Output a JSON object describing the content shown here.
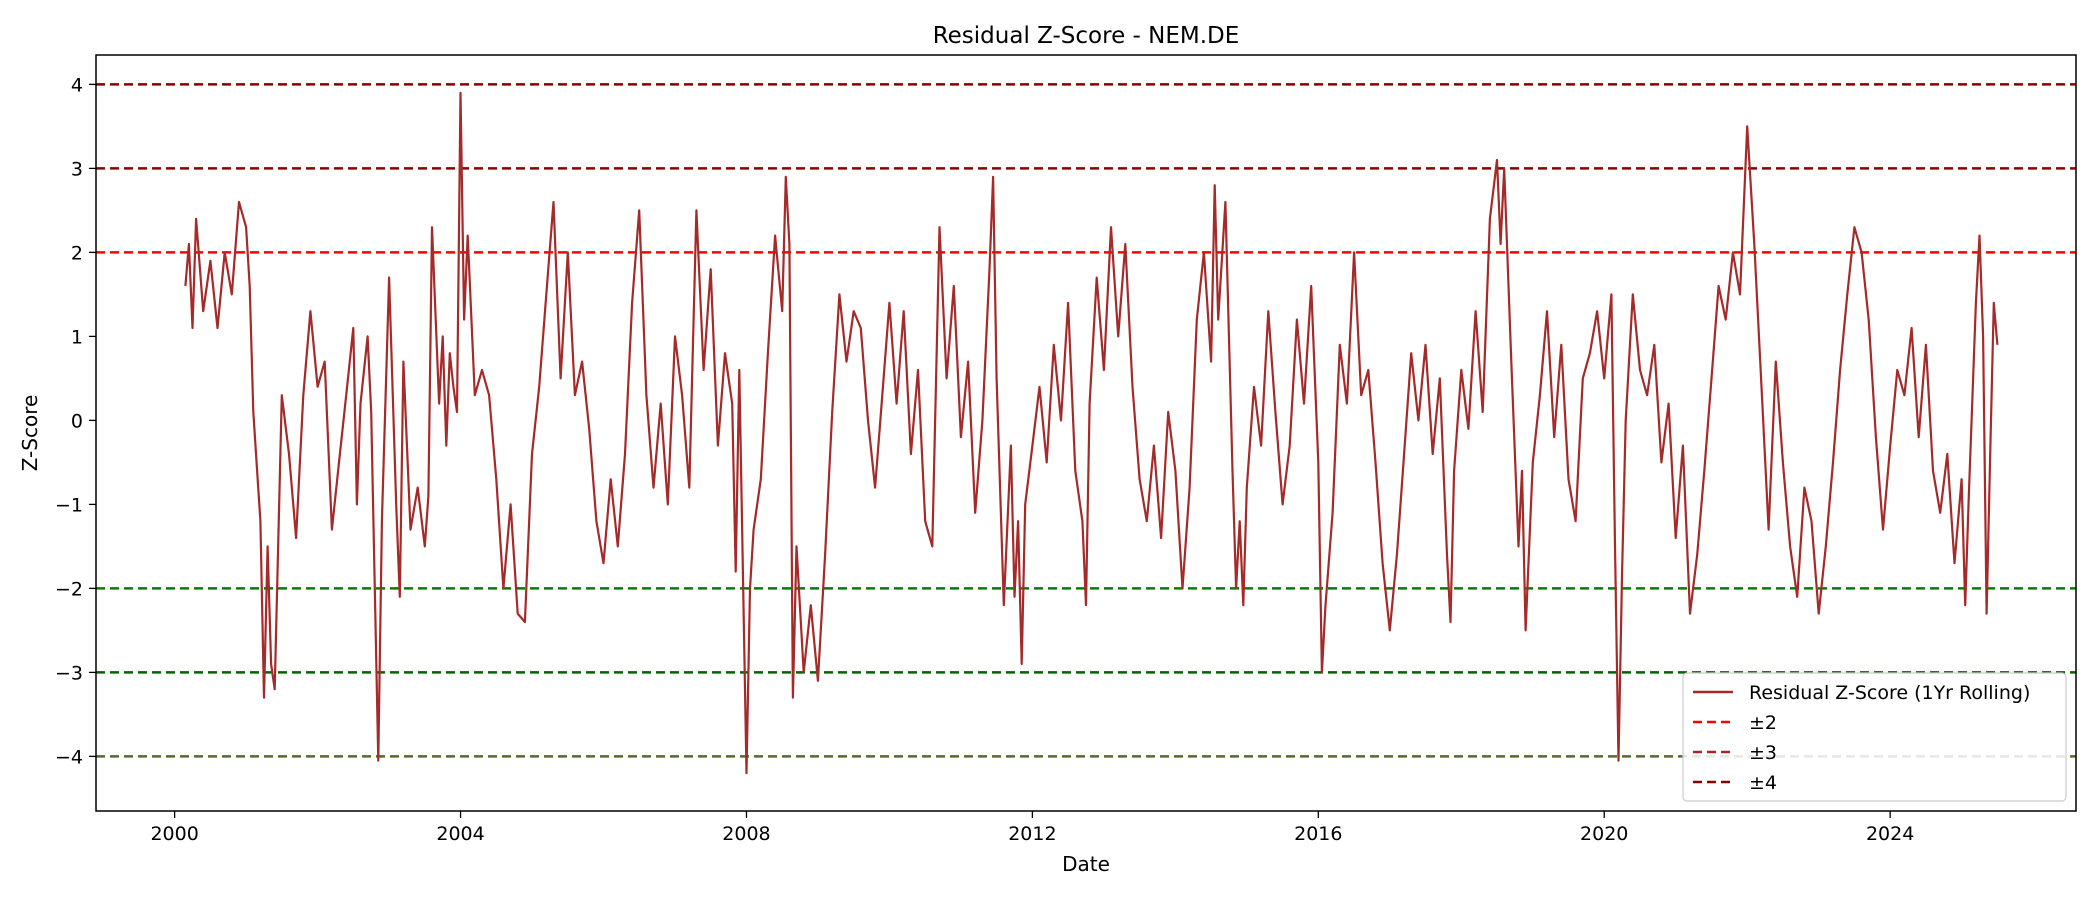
{
  "chart_data": {
    "type": "line",
    "title": "Residual Z-Score - NEM.DE",
    "xlabel": "Date",
    "ylabel": "Z-Score",
    "xlim": [
      1998.9,
      2026.6
    ],
    "ylim": [
      -4.65,
      4.35
    ],
    "x_ticks": [
      2000,
      2004,
      2008,
      2012,
      2016,
      2020,
      2024
    ],
    "x_tick_labels": [
      "2000",
      "2004",
      "2008",
      "2012",
      "2016",
      "2020",
      "2024"
    ],
    "y_ticks": [
      4,
      3,
      2,
      1,
      0,
      -1,
      -2,
      -3,
      -4
    ],
    "y_tick_labels": [
      "4",
      "3",
      "2",
      "1",
      "0",
      "−1",
      "−2",
      "−3",
      "−4"
    ],
    "grid": false,
    "legend_position": "lower right",
    "legend": [
      {
        "label": "Residual Z-Score (1Yr Rolling)",
        "style": "solid",
        "color": "#a52a2a"
      },
      {
        "label": "±2",
        "style": "dashed",
        "color": "#ff0000"
      },
      {
        "label": "±3",
        "style": "dashed",
        "color": "#b22222"
      },
      {
        "label": "±4",
        "style": "dashed",
        "color": "#8b0000"
      }
    ],
    "threshold_lines": [
      {
        "y": 4,
        "color": "#8b0000"
      },
      {
        "y": 3,
        "color": "#8b0000"
      },
      {
        "y": 2,
        "color": "#ff0000"
      },
      {
        "y": -2,
        "color": "#008000"
      },
      {
        "y": -3,
        "color": "#006400"
      },
      {
        "y": -4,
        "color": "#556b2f"
      }
    ],
    "series": [
      {
        "name": "Residual Z-Score (1Yr Rolling)",
        "color": "#a52a2a",
        "points": [
          [
            2000.15,
            1.6
          ],
          [
            2000.2,
            2.1
          ],
          [
            2000.25,
            1.1
          ],
          [
            2000.3,
            2.4
          ],
          [
            2000.4,
            1.3
          ],
          [
            2000.5,
            1.9
          ],
          [
            2000.6,
            1.1
          ],
          [
            2000.7,
            2.0
          ],
          [
            2000.8,
            1.5
          ],
          [
            2000.9,
            2.6
          ],
          [
            2001.0,
            2.3
          ],
          [
            2001.05,
            1.6
          ],
          [
            2001.1,
            0.1
          ],
          [
            2001.2,
            -1.2
          ],
          [
            2001.25,
            -3.3
          ],
          [
            2001.3,
            -1.5
          ],
          [
            2001.35,
            -2.9
          ],
          [
            2001.4,
            -3.2
          ],
          [
            2001.5,
            0.3
          ],
          [
            2001.6,
            -0.4
          ],
          [
            2001.7,
            -1.4
          ],
          [
            2001.8,
            0.3
          ],
          [
            2001.9,
            1.3
          ],
          [
            2002.0,
            0.4
          ],
          [
            2002.1,
            0.7
          ],
          [
            2002.2,
            -1.3
          ],
          [
            2002.3,
            -0.5
          ],
          [
            2002.4,
            0.3
          ],
          [
            2002.5,
            1.1
          ],
          [
            2002.55,
            -1.0
          ],
          [
            2002.6,
            0.2
          ],
          [
            2002.7,
            1.0
          ],
          [
            2002.75,
            0.1
          ],
          [
            2002.85,
            -4.05
          ],
          [
            2002.9,
            -1.2
          ],
          [
            2003.0,
            1.7
          ],
          [
            2003.1,
            -1.0
          ],
          [
            2003.15,
            -2.1
          ],
          [
            2003.2,
            0.7
          ],
          [
            2003.3,
            -1.3
          ],
          [
            2003.4,
            -0.8
          ],
          [
            2003.5,
            -1.5
          ],
          [
            2003.55,
            -0.9
          ],
          [
            2003.6,
            2.3
          ],
          [
            2003.7,
            0.2
          ],
          [
            2003.75,
            1.0
          ],
          [
            2003.8,
            -0.3
          ],
          [
            2003.85,
            0.8
          ],
          [
            2003.9,
            0.4
          ],
          [
            2003.95,
            0.1
          ],
          [
            2004.0,
            3.9
          ],
          [
            2004.05,
            1.2
          ],
          [
            2004.1,
            2.2
          ],
          [
            2004.2,
            0.3
          ],
          [
            2004.3,
            0.6
          ],
          [
            2004.4,
            0.3
          ],
          [
            2004.5,
            -0.7
          ],
          [
            2004.6,
            -2.0
          ],
          [
            2004.7,
            -1.0
          ],
          [
            2004.8,
            -2.3
          ],
          [
            2004.9,
            -2.4
          ],
          [
            2005.0,
            -0.4
          ],
          [
            2005.1,
            0.4
          ],
          [
            2005.2,
            1.5
          ],
          [
            2005.3,
            2.6
          ],
          [
            2005.4,
            0.5
          ],
          [
            2005.5,
            2.0
          ],
          [
            2005.6,
            0.3
          ],
          [
            2005.7,
            0.7
          ],
          [
            2005.8,
            -0.1
          ],
          [
            2005.9,
            -1.2
          ],
          [
            2006.0,
            -1.7
          ],
          [
            2006.1,
            -0.7
          ],
          [
            2006.2,
            -1.5
          ],
          [
            2006.3,
            -0.4
          ],
          [
            2006.4,
            1.4
          ],
          [
            2006.5,
            2.5
          ],
          [
            2006.6,
            0.3
          ],
          [
            2006.7,
            -0.8
          ],
          [
            2006.8,
            0.2
          ],
          [
            2006.9,
            -1.0
          ],
          [
            2007.0,
            1.0
          ],
          [
            2007.1,
            0.3
          ],
          [
            2007.2,
            -0.8
          ],
          [
            2007.3,
            2.5
          ],
          [
            2007.4,
            0.6
          ],
          [
            2007.5,
            1.8
          ],
          [
            2007.6,
            -0.3
          ],
          [
            2007.7,
            0.8
          ],
          [
            2007.8,
            0.2
          ],
          [
            2007.85,
            -1.8
          ],
          [
            2007.9,
            0.6
          ],
          [
            2008.0,
            -4.2
          ],
          [
            2008.05,
            -2.0
          ],
          [
            2008.1,
            -1.3
          ],
          [
            2008.2,
            -0.7
          ],
          [
            2008.3,
            0.8
          ],
          [
            2008.4,
            2.2
          ],
          [
            2008.5,
            1.3
          ],
          [
            2008.55,
            2.9
          ],
          [
            2008.6,
            2.1
          ],
          [
            2008.65,
            -3.3
          ],
          [
            2008.7,
            -1.5
          ],
          [
            2008.8,
            -3.0
          ],
          [
            2008.9,
            -2.2
          ],
          [
            2009.0,
            -3.1
          ],
          [
            2009.1,
            -1.6
          ],
          [
            2009.2,
            0.1
          ],
          [
            2009.3,
            1.5
          ],
          [
            2009.4,
            0.7
          ],
          [
            2009.5,
            1.3
          ],
          [
            2009.6,
            1.1
          ],
          [
            2009.7,
            0.0
          ],
          [
            2009.8,
            -0.8
          ],
          [
            2009.9,
            0.3
          ],
          [
            2010.0,
            1.4
          ],
          [
            2010.1,
            0.2
          ],
          [
            2010.2,
            1.3
          ],
          [
            2010.3,
            -0.4
          ],
          [
            2010.4,
            0.6
          ],
          [
            2010.5,
            -1.2
          ],
          [
            2010.6,
            -1.5
          ],
          [
            2010.7,
            2.3
          ],
          [
            2010.8,
            0.5
          ],
          [
            2010.9,
            1.6
          ],
          [
            2011.0,
            -0.2
          ],
          [
            2011.1,
            0.7
          ],
          [
            2011.2,
            -1.1
          ],
          [
            2011.3,
            0.0
          ],
          [
            2011.4,
            1.8
          ],
          [
            2011.45,
            2.9
          ],
          [
            2011.5,
            0.5
          ],
          [
            2011.6,
            -2.2
          ],
          [
            2011.7,
            -0.3
          ],
          [
            2011.75,
            -2.1
          ],
          [
            2011.8,
            -1.2
          ],
          [
            2011.85,
            -2.9
          ],
          [
            2011.9,
            -1.0
          ],
          [
            2012.0,
            -0.3
          ],
          [
            2012.1,
            0.4
          ],
          [
            2012.2,
            -0.5
          ],
          [
            2012.3,
            0.9
          ],
          [
            2012.4,
            0.0
          ],
          [
            2012.5,
            1.4
          ],
          [
            2012.6,
            -0.6
          ],
          [
            2012.7,
            -1.2
          ],
          [
            2012.75,
            -2.2
          ],
          [
            2012.8,
            0.2
          ],
          [
            2012.9,
            1.7
          ],
          [
            2013.0,
            0.6
          ],
          [
            2013.1,
            2.3
          ],
          [
            2013.2,
            1.0
          ],
          [
            2013.3,
            2.1
          ],
          [
            2013.4,
            0.4
          ],
          [
            2013.5,
            -0.7
          ],
          [
            2013.6,
            -1.2
          ],
          [
            2013.7,
            -0.3
          ],
          [
            2013.8,
            -1.4
          ],
          [
            2013.9,
            0.1
          ],
          [
            2014.0,
            -0.6
          ],
          [
            2014.1,
            -2.0
          ],
          [
            2014.2,
            -0.8
          ],
          [
            2014.3,
            1.2
          ],
          [
            2014.4,
            2.0
          ],
          [
            2014.5,
            0.7
          ],
          [
            2014.55,
            2.8
          ],
          [
            2014.6,
            1.2
          ],
          [
            2014.7,
            2.6
          ],
          [
            2014.8,
            -0.6
          ],
          [
            2014.85,
            -2.0
          ],
          [
            2014.9,
            -1.2
          ],
          [
            2014.95,
            -2.2
          ],
          [
            2015.0,
            -0.8
          ],
          [
            2015.1,
            0.4
          ],
          [
            2015.2,
            -0.3
          ],
          [
            2015.3,
            1.3
          ],
          [
            2015.4,
            0.1
          ],
          [
            2015.5,
            -1.0
          ],
          [
            2015.6,
            -0.3
          ],
          [
            2015.7,
            1.2
          ],
          [
            2015.8,
            0.2
          ],
          [
            2015.9,
            1.6
          ],
          [
            2016.0,
            -0.5
          ],
          [
            2016.05,
            -3.0
          ],
          [
            2016.1,
            -2.2
          ],
          [
            2016.2,
            -1.1
          ],
          [
            2016.3,
            0.9
          ],
          [
            2016.4,
            0.2
          ],
          [
            2016.5,
            2.0
          ],
          [
            2016.6,
            0.3
          ],
          [
            2016.7,
            0.6
          ],
          [
            2016.8,
            -0.5
          ],
          [
            2016.9,
            -1.7
          ],
          [
            2017.0,
            -2.5
          ],
          [
            2017.1,
            -1.6
          ],
          [
            2017.2,
            -0.4
          ],
          [
            2017.3,
            0.8
          ],
          [
            2017.4,
            0.0
          ],
          [
            2017.5,
            0.9
          ],
          [
            2017.6,
            -0.4
          ],
          [
            2017.7,
            0.5
          ],
          [
            2017.8,
            -1.6
          ],
          [
            2017.85,
            -2.4
          ],
          [
            2017.9,
            -0.6
          ],
          [
            2018.0,
            0.6
          ],
          [
            2018.1,
            -0.1
          ],
          [
            2018.2,
            1.3
          ],
          [
            2018.3,
            0.1
          ],
          [
            2018.4,
            2.4
          ],
          [
            2018.5,
            3.1
          ],
          [
            2018.55,
            2.1
          ],
          [
            2018.6,
            3.0
          ],
          [
            2018.7,
            0.7
          ],
          [
            2018.8,
            -1.5
          ],
          [
            2018.85,
            -0.6
          ],
          [
            2018.9,
            -2.5
          ],
          [
            2019.0,
            -0.5
          ],
          [
            2019.1,
            0.3
          ],
          [
            2019.2,
            1.3
          ],
          [
            2019.3,
            -0.2
          ],
          [
            2019.4,
            0.9
          ],
          [
            2019.5,
            -0.7
          ],
          [
            2019.6,
            -1.2
          ],
          [
            2019.7,
            0.5
          ],
          [
            2019.8,
            0.8
          ],
          [
            2019.9,
            1.3
          ],
          [
            2020.0,
            0.5
          ],
          [
            2020.05,
            1.0
          ],
          [
            2020.1,
            1.5
          ],
          [
            2020.15,
            -1.5
          ],
          [
            2020.2,
            -4.05
          ],
          [
            2020.25,
            -1.8
          ],
          [
            2020.3,
            0.0
          ],
          [
            2020.4,
            1.5
          ],
          [
            2020.5,
            0.6
          ],
          [
            2020.6,
            0.3
          ],
          [
            2020.7,
            0.9
          ],
          [
            2020.8,
            -0.5
          ],
          [
            2020.9,
            0.2
          ],
          [
            2021.0,
            -1.4
          ],
          [
            2021.1,
            -0.3
          ],
          [
            2021.2,
            -2.3
          ],
          [
            2021.3,
            -1.6
          ],
          [
            2021.4,
            -0.6
          ],
          [
            2021.5,
            0.5
          ],
          [
            2021.6,
            1.6
          ],
          [
            2021.7,
            1.2
          ],
          [
            2021.8,
            2.0
          ],
          [
            2021.9,
            1.5
          ],
          [
            2022.0,
            3.5
          ],
          [
            2022.1,
            2.1
          ],
          [
            2022.2,
            0.4
          ],
          [
            2022.3,
            -1.3
          ],
          [
            2022.4,
            0.7
          ],
          [
            2022.5,
            -0.5
          ],
          [
            2022.6,
            -1.5
          ],
          [
            2022.7,
            -2.1
          ],
          [
            2022.8,
            -0.8
          ],
          [
            2022.9,
            -1.2
          ],
          [
            2023.0,
            -2.3
          ],
          [
            2023.1,
            -1.5
          ],
          [
            2023.2,
            -0.5
          ],
          [
            2023.3,
            0.6
          ],
          [
            2023.4,
            1.5
          ],
          [
            2023.5,
            2.3
          ],
          [
            2023.6,
            2.0
          ],
          [
            2023.7,
            1.2
          ],
          [
            2023.8,
            -0.2
          ],
          [
            2023.9,
            -1.3
          ],
          [
            2024.0,
            -0.3
          ],
          [
            2024.1,
            0.6
          ],
          [
            2024.2,
            0.3
          ],
          [
            2024.3,
            1.1
          ],
          [
            2024.4,
            -0.2
          ],
          [
            2024.5,
            0.9
          ],
          [
            2024.6,
            -0.6
          ],
          [
            2024.7,
            -1.1
          ],
          [
            2024.8,
            -0.4
          ],
          [
            2024.9,
            -1.7
          ],
          [
            2025.0,
            -0.7
          ],
          [
            2025.05,
            -2.2
          ],
          [
            2025.1,
            -0.9
          ],
          [
            2025.2,
            1.4
          ],
          [
            2025.25,
            2.2
          ],
          [
            2025.3,
            1.0
          ],
          [
            2025.35,
            -2.3
          ],
          [
            2025.4,
            -0.4
          ],
          [
            2025.45,
            1.4
          ],
          [
            2025.5,
            0.9
          ]
        ]
      }
    ]
  }
}
